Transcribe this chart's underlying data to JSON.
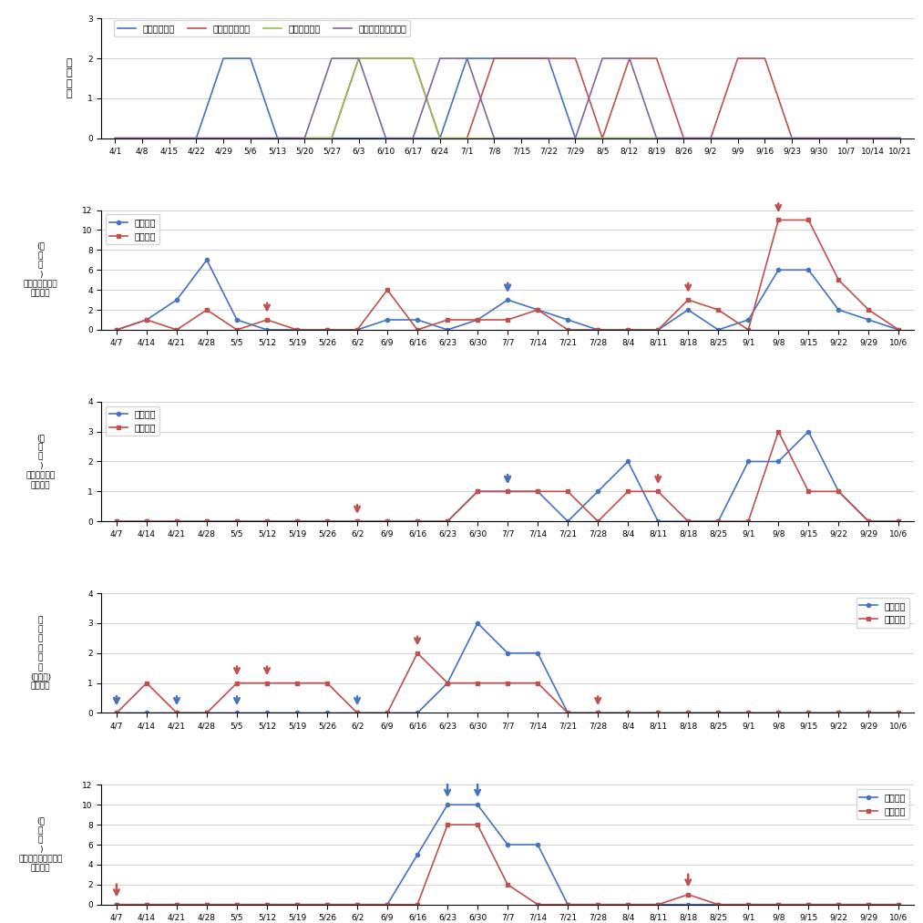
{
  "chart1": {
    "ylabel": "위\n험\n단\n계",
    "xlabels": [
      "4/1",
      "4/8",
      "4/15",
      "4/22",
      "4/29",
      "5/6",
      "5/13",
      "5/20",
      "5/27",
      "6/3",
      "6/10",
      "6/17",
      "6/24",
      "7/1",
      "7/8",
      "7/15",
      "7/22",
      "7/29",
      "8/5",
      "8/12",
      "8/19",
      "8/26",
      "9/2",
      "9/9",
      "9/16",
      "9/23",
      "9/30",
      "10/7",
      "10/14",
      "10/21"
    ],
    "ylim": [
      0,
      3
    ],
    "yticks": [
      0,
      1,
      2,
      3
    ],
    "series": {
      "가두까지벌레": {
        "color": "#4472C4",
        "data": [
          0,
          0,
          0,
          0,
          2,
          2,
          0,
          0,
          0,
          0,
          0,
          0,
          0,
          2,
          2,
          2,
          2,
          0,
          0,
          0,
          0,
          0,
          0,
          0,
          0,
          0,
          0,
          0,
          0,
          0
        ]
      },
      "복숭아심식나방": {
        "color": "#C0504D",
        "data": [
          0,
          0,
          0,
          0,
          0,
          0,
          0,
          0,
          0,
          2,
          2,
          2,
          0,
          0,
          2,
          2,
          2,
          2,
          0,
          2,
          2,
          0,
          0,
          2,
          2,
          0,
          0,
          0,
          0,
          0
        ]
      },
      "복숭아순나방": {
        "color": "#9BBB59",
        "data": [
          0,
          0,
          0,
          0,
          0,
          0,
          0,
          0,
          0,
          2,
          2,
          2,
          0,
          0,
          0,
          0,
          0,
          0,
          0,
          0,
          0,
          0,
          0,
          0,
          0,
          0,
          0,
          0,
          0,
          0
        ]
      },
      "애모무늬잎말이나방": {
        "color": "#8064A2",
        "data": [
          0,
          0,
          0,
          0,
          0,
          0,
          0,
          0,
          2,
          2,
          0,
          0,
          2,
          2,
          0,
          0,
          0,
          0,
          2,
          2,
          0,
          0,
          0,
          0,
          0,
          0,
          0,
          0,
          0,
          0
        ]
      }
    }
  },
  "chart2": {
    "ylabel_lines": [
      "(수",
      "고",
      "미",
      ")",
      "복숭아심식나방",
      "발생수예"
    ],
    "ylim": [
      0,
      12
    ],
    "yticks": [
      0,
      2,
      4,
      6,
      8,
      10,
      12
    ],
    "xlabels": [
      "4/7",
      "4/14",
      "4/21",
      "4/28",
      "5/5",
      "5/12",
      "5/19",
      "5/26",
      "6/2",
      "6/9",
      "6/16",
      "6/23",
      "6/30",
      "7/7",
      "7/14",
      "7/21",
      "7/28",
      "8/4",
      "8/11",
      "8/18",
      "8/25",
      "9/1",
      "9/8",
      "9/15",
      "9/22",
      "9/29",
      "10/6"
    ],
    "yeko": [
      0,
      1,
      3,
      7,
      1,
      0,
      0,
      0,
      0,
      1,
      1,
      0,
      1,
      3,
      2,
      1,
      0,
      0,
      0,
      2,
      0,
      1,
      6,
      6,
      2,
      1,
      0
    ],
    "ykan": [
      0,
      1,
      0,
      2,
      0,
      1,
      0,
      0,
      0,
      4,
      0,
      1,
      1,
      1,
      2,
      0,
      0,
      0,
      0,
      3,
      2,
      0,
      11,
      11,
      5,
      2,
      0
    ],
    "arrows_red": [
      5,
      13,
      19,
      22
    ],
    "arrows_blue": [
      13
    ]
  },
  "chart3": {
    "ylabel_lines": [
      "(수",
      "고",
      "미",
      ")",
      "복숭아순나방",
      "발생수예"
    ],
    "ylim": [
      0,
      4
    ],
    "yticks": [
      0,
      1,
      2,
      3,
      4
    ],
    "xlabels": [
      "4/7",
      "4/14",
      "4/21",
      "4/28",
      "5/5",
      "5/12",
      "5/19",
      "5/26",
      "6/2",
      "6/9",
      "6/16",
      "6/23",
      "6/30",
      "7/7",
      "7/14",
      "7/21",
      "7/28",
      "8/4",
      "8/11",
      "8/18",
      "8/25",
      "9/1",
      "9/8",
      "9/15",
      "9/22",
      "9/29",
      "10/6"
    ],
    "yeko": [
      0,
      0,
      0,
      0,
      0,
      0,
      0,
      0,
      0,
      0,
      0,
      0,
      1,
      1,
      1,
      0,
      1,
      2,
      0,
      0,
      0,
      2,
      2,
      3,
      1,
      0,
      0
    ],
    "ykan": [
      0,
      0,
      0,
      0,
      0,
      0,
      0,
      0,
      0,
      0,
      0,
      0,
      1,
      1,
      1,
      1,
      0,
      1,
      1,
      0,
      0,
      0,
      3,
      1,
      1,
      0,
      0
    ],
    "arrows_red": [
      8,
      13,
      18
    ],
    "arrows_blue": [
      13
    ]
  },
  "chart4": {
    "ylabel_lines": [
      "가",
      "두",
      "까",
      "지",
      "벌",
      "레",
      "(수고미)",
      "발생수예"
    ],
    "ylim": [
      0,
      4
    ],
    "yticks": [
      0,
      1,
      2,
      3,
      4
    ],
    "xlabels": [
      "4/7",
      "4/14",
      "4/21",
      "4/28",
      "5/5",
      "5/12",
      "5/19",
      "5/26",
      "6/2",
      "6/9",
      "6/16",
      "6/23",
      "6/30",
      "7/7",
      "7/14",
      "7/21",
      "7/28",
      "8/4",
      "8/11",
      "8/18",
      "8/25",
      "9/1",
      "9/8",
      "9/15",
      "9/22",
      "9/29",
      "10/6"
    ],
    "yeko": [
      0,
      0,
      0,
      0,
      0,
      0,
      0,
      0,
      0,
      0,
      0,
      1,
      3,
      2,
      2,
      0,
      0,
      0,
      0,
      0,
      0,
      0,
      0,
      0,
      0,
      0,
      0
    ],
    "ykan": [
      0,
      1,
      0,
      0,
      1,
      1,
      1,
      1,
      0,
      0,
      2,
      1,
      1,
      1,
      1,
      0,
      0,
      0,
      0,
      0,
      0,
      0,
      0,
      0,
      0,
      0,
      0
    ],
    "arrows_red": [
      0,
      4,
      5,
      10,
      16
    ],
    "arrows_blue": [
      0,
      2,
      4,
      8
    ]
  },
  "chart5": {
    "ylabel_lines": [
      "애모무늬",
      "잎말이나방",
      "(수고미)",
      "발생수예"
    ],
    "ylim": [
      0,
      12
    ],
    "yticks": [
      0,
      2,
      4,
      6,
      8,
      10,
      12
    ],
    "xlabels": [
      "4/7",
      "4/14",
      "4/21",
      "4/28",
      "5/5",
      "5/12",
      "5/19",
      "5/26",
      "6/2",
      "6/9",
      "6/16",
      "6/23",
      "6/30",
      "7/7",
      "7/14",
      "7/21",
      "7/28",
      "8/4",
      "8/11",
      "8/18",
      "8/25",
      "9/1",
      "9/8",
      "9/15",
      "9/22",
      "9/29",
      "10/6"
    ],
    "yeko": [
      0,
      0,
      0,
      0,
      0,
      0,
      0,
      0,
      0,
      0,
      5,
      10,
      10,
      6,
      6,
      0,
      0,
      0,
      0,
      0,
      0,
      0,
      0,
      0,
      0,
      0,
      0
    ],
    "ykan": [
      0,
      0,
      0,
      0,
      0,
      0,
      0,
      0,
      0,
      0,
      0,
      8,
      8,
      2,
      0,
      0,
      0,
      0,
      0,
      1,
      0,
      0,
      0,
      0,
      0,
      0,
      0
    ],
    "arrows_red": [
      0,
      19
    ],
    "arrows_blue": [
      11,
      12
    ]
  },
  "color_blue": "#4472C4",
  "color_red": "#C0504D",
  "legend_eco": "예측방제",
  "legend_kan": "관행방제"
}
